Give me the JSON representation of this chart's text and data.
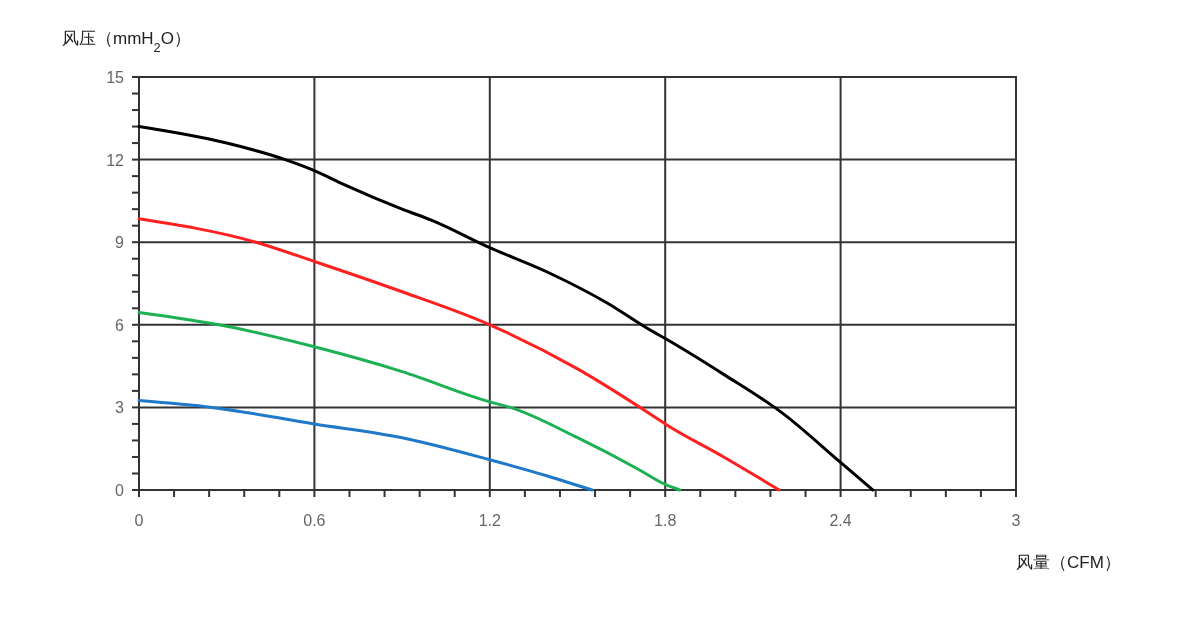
{
  "chart_data": {
    "type": "line",
    "xlabel": "风量（CFM）",
    "ylabel": "风压（mmH$_{2}$O）",
    "xlim": [
      0,
      3
    ],
    "ylim": [
      0,
      15
    ],
    "xticks": [
      0,
      {
        "value": 0.12,
        "label": null
      },
      {
        "value": 0.24,
        "label": null
      },
      {
        "value": 0.36,
        "label": null
      },
      {
        "value": 0.48,
        "label": null
      },
      0.6,
      {
        "value": 0.72,
        "label": null
      },
      {
        "value": 0.84,
        "label": null
      },
      {
        "value": 0.96,
        "label": null
      },
      {
        "value": 1.08,
        "label": null
      },
      1.2,
      {
        "value": 1.32,
        "label": null
      },
      {
        "value": 1.44,
        "label": null
      },
      {
        "value": 1.56,
        "label": null
      },
      {
        "value": 1.68,
        "label": null
      },
      1.8,
      {
        "value": 1.92,
        "label": null
      },
      {
        "value": 2.04,
        "label": null
      },
      {
        "value": 2.16,
        "label": null
      },
      {
        "value": 2.28,
        "label": null
      },
      2.4,
      {
        "value": 2.52,
        "label": null
      },
      {
        "value": 2.64,
        "label": null
      },
      {
        "value": 2.76,
        "label": null
      },
      {
        "value": 2.88,
        "label": null
      },
      3
    ],
    "yticks": [
      0,
      {
        "value": 0.6,
        "label": null
      },
      {
        "value": 1.2,
        "label": null
      },
      {
        "value": 1.8,
        "label": null
      },
      {
        "value": 2.4,
        "label": null
      },
      3,
      {
        "value": 3.6,
        "label": null
      },
      {
        "value": 4.2,
        "label": null
      },
      {
        "value": 4.8,
        "label": null
      },
      {
        "value": 5.4,
        "label": null
      },
      6,
      {
        "value": 6.6,
        "label": null
      },
      {
        "value": 7.2,
        "label": null
      },
      {
        "value": 7.8,
        "label": null
      },
      {
        "value": 8.4,
        "label": null
      },
      9,
      {
        "value": 9.6,
        "label": null
      },
      {
        "value": 10.2,
        "label": null
      },
      {
        "value": 10.8,
        "label": null
      },
      {
        "value": 11.4,
        "label": null
      },
      12,
      {
        "value": 12.6,
        "label": null
      },
      {
        "value": 13.2,
        "label": null
      },
      {
        "value": 13.8,
        "label": null
      },
      {
        "value": 14.4,
        "label": null
      },
      15
    ],
    "grid": true,
    "marker": "none",
    "line_style": "solid",
    "series": [
      {
        "color": "#000000",
        "x": [
          0,
          0.3,
          0.5,
          0.6,
          0.7,
          0.9,
          1.0,
          1.2,
          1.4,
          1.6,
          1.75,
          1.8,
          2.0,
          2.2,
          2.4,
          2.51
        ],
        "values": [
          13.2,
          12.6,
          12.0,
          11.6,
          11.1,
          10.2,
          9.8,
          8.8,
          7.9,
          6.8,
          5.8,
          5.5,
          4.2,
          2.8,
          1.0,
          0
        ]
      },
      {
        "color": "#ff2020",
        "x": [
          0,
          0.4,
          0.6,
          0.9,
          1.2,
          1.5,
          1.75,
          1.8,
          2.0,
          2.19
        ],
        "values": [
          9.85,
          9.0,
          8.3,
          7.2,
          6.0,
          4.4,
          2.75,
          2.4,
          1.2,
          0
        ]
      },
      {
        "color": "#1db154",
        "x": [
          0,
          0.3,
          0.6,
          0.9,
          1.2,
          1.27,
          1.5,
          1.7,
          1.8,
          1.85
        ],
        "values": [
          6.45,
          5.95,
          5.2,
          4.3,
          3.2,
          3.0,
          1.9,
          0.8,
          0.2,
          0
        ]
      },
      {
        "color": "#1f78c8",
        "x": [
          0,
          0.25,
          0.6,
          0.9,
          1.2,
          1.4,
          1.55
        ],
        "values": [
          3.25,
          3.0,
          2.4,
          1.9,
          1.1,
          0.5,
          0
        ]
      }
    ]
  }
}
